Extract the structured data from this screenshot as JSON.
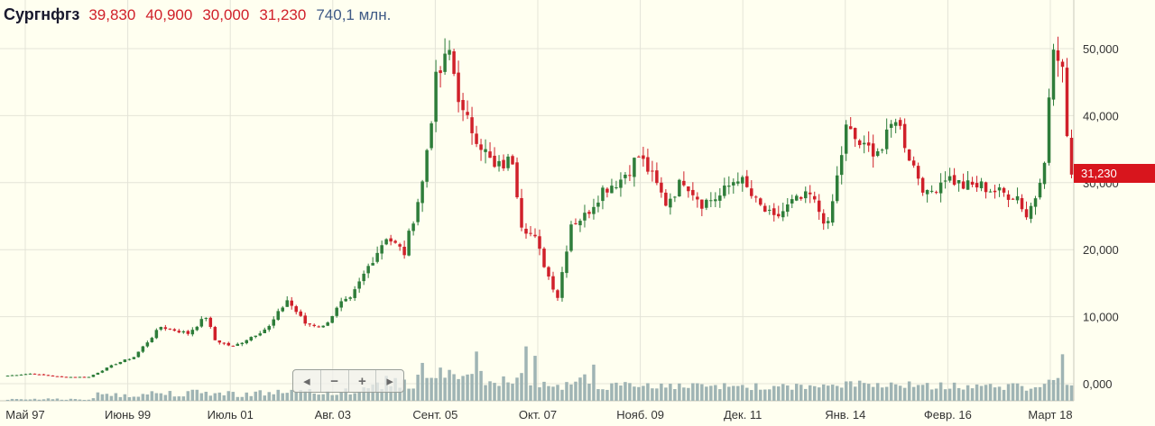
{
  "header": {
    "ticker": "Сургнфгз",
    "open": "39,830",
    "high": "40,900",
    "low": "30,000",
    "close": "31,230",
    "volume": "740,1 млн."
  },
  "zoom_controls": {
    "scroll_left": "◂",
    "zoom_out": "−",
    "zoom_in": "+",
    "scroll_right": "▸"
  },
  "last_price_label": "31,230",
  "colors": {
    "up": "#2e7d3a",
    "down": "#d0202a",
    "volume": "#9fb4b4",
    "grid": "#e4e4d8",
    "background": "#fffff0"
  },
  "chart_data": {
    "type": "candlestick",
    "y_axis": {
      "min": 0,
      "max": 50,
      "ticks": [
        "0,000",
        "10,000",
        "20,000",
        "30,000",
        "40,000",
        "50,000"
      ],
      "side": "right"
    },
    "x_axis": {
      "ticks": [
        "Май 97",
        "Июнь 99",
        "Июль 01",
        "Авг. 03",
        "Сент. 05",
        "Окт. 07",
        "Нояб. 09",
        "Дек. 11",
        "Янв. 14",
        "Февр. 16",
        "Март 18"
      ]
    },
    "grid": true,
    "close_path": [
      [
        0,
        1.2
      ],
      [
        5,
        1.5
      ],
      [
        12,
        1.0
      ],
      [
        18,
        1.0
      ],
      [
        24,
        3.0
      ],
      [
        28,
        4.0
      ],
      [
        34,
        8.5
      ],
      [
        40,
        7.5
      ],
      [
        44,
        10.0
      ],
      [
        46,
        6.5
      ],
      [
        50,
        5.5
      ],
      [
        54,
        7.0
      ],
      [
        58,
        8.5
      ],
      [
        62,
        12.5
      ],
      [
        66,
        9.0
      ],
      [
        70,
        8.5
      ],
      [
        74,
        12.0
      ],
      [
        76,
        12.5
      ],
      [
        80,
        17.5
      ],
      [
        84,
        22.0
      ],
      [
        88,
        19.5
      ],
      [
        92,
        30.0
      ],
      [
        95,
        45.0
      ],
      [
        98,
        49.5
      ],
      [
        101,
        40.0
      ],
      [
        104,
        37.0
      ],
      [
        108,
        32.0
      ],
      [
        112,
        33.5
      ],
      [
        114,
        24.0
      ],
      [
        117,
        21.5
      ],
      [
        120,
        16.0
      ],
      [
        122,
        13.0
      ],
      [
        125,
        24.0
      ],
      [
        128,
        25.0
      ],
      [
        132,
        29.0
      ],
      [
        136,
        30.5
      ],
      [
        140,
        34.0
      ],
      [
        142,
        32.0
      ],
      [
        146,
        27.0
      ],
      [
        150,
        30.5
      ],
      [
        154,
        27.0
      ],
      [
        158,
        28.0
      ],
      [
        162,
        31.0
      ],
      [
        166,
        27.0
      ],
      [
        170,
        24.5
      ],
      [
        174,
        27.0
      ],
      [
        178,
        28.0
      ],
      [
        182,
        23.5
      ],
      [
        186,
        38.0
      ],
      [
        190,
        35.0
      ],
      [
        194,
        35.0
      ],
      [
        197,
        40.0
      ],
      [
        200,
        34.0
      ],
      [
        204,
        28.0
      ],
      [
        208,
        31.0
      ],
      [
        212,
        29.5
      ],
      [
        216,
        29.5
      ],
      [
        220,
        28.5
      ],
      [
        224,
        28.0
      ],
      [
        226,
        25.0
      ],
      [
        228,
        28.0
      ],
      [
        230,
        34.0
      ],
      [
        232,
        50.0
      ],
      [
        234,
        46.0
      ],
      [
        235,
        38.0
      ],
      [
        236,
        31.2
      ]
    ]
  }
}
